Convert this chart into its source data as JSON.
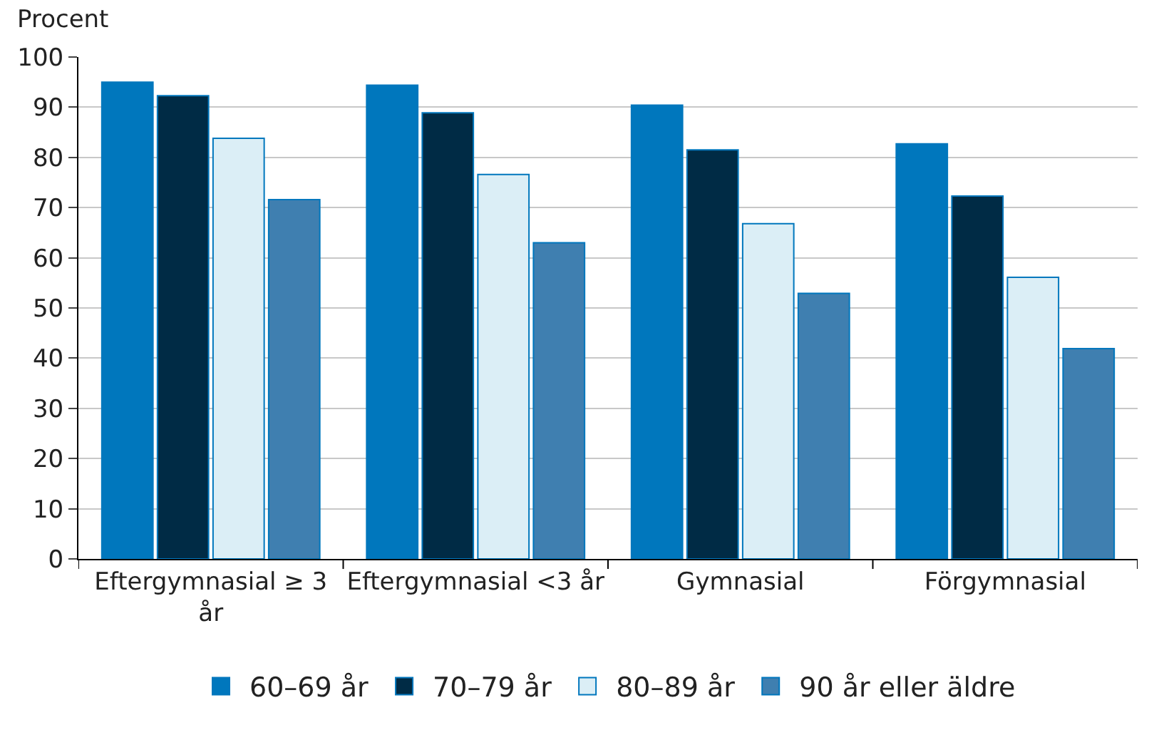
{
  "chart_data": {
    "type": "bar",
    "ylabel": "Procent",
    "categories": [
      "Eftergymnasial ≥ 3 år",
      "Eftergymnasial <3 år",
      "Gymnasial",
      "Förgymnasial"
    ],
    "series": [
      {
        "name": "60–69 år",
        "color": "#0077bd",
        "values": [
          95,
          94.4,
          90.4,
          82.7
        ]
      },
      {
        "name": "70–79 år",
        "color": "#002b45",
        "values": [
          92.3,
          88.9,
          81.5,
          72.3
        ]
      },
      {
        "name": "80–89 år",
        "color": "#dbeef6",
        "values": [
          83.8,
          76.6,
          66.8,
          56.1
        ]
      },
      {
        "name": "90 år eller äldre",
        "color": "#3f7fb0",
        "values": [
          71.6,
          63,
          52.9,
          41.9
        ]
      }
    ],
    "ylim": [
      0,
      100
    ],
    "yticks": [
      0,
      10,
      20,
      30,
      40,
      50,
      60,
      70,
      80,
      90,
      100
    ],
    "grid": "y",
    "legend": "bottom"
  }
}
